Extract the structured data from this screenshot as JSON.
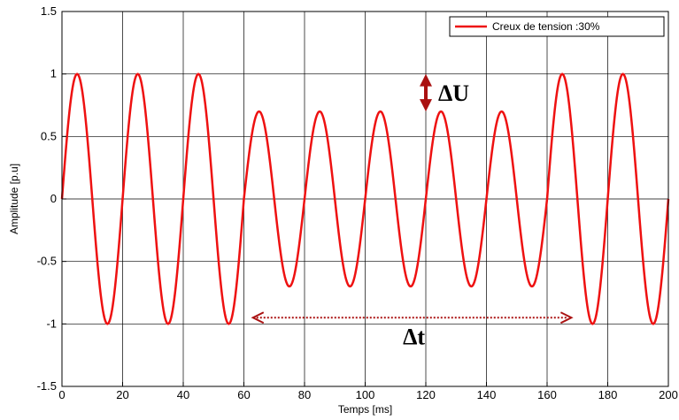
{
  "chart_data": {
    "type": "line",
    "xlabel": "Temps [ms]",
    "ylabel": "Amplitude [p.u]",
    "xlim": [
      0,
      200
    ],
    "ylim": [
      -1.5,
      1.5
    ],
    "xticks": [
      0,
      20,
      40,
      60,
      80,
      100,
      120,
      140,
      160,
      180,
      200
    ],
    "yticks": [
      -1.5,
      -1,
      -0.5,
      0,
      0.5,
      1,
      1.5
    ],
    "ytick_labels": [
      "-1.5",
      "-1",
      "-0.5",
      "0",
      "0.5",
      "1",
      "1.5"
    ],
    "grid": true,
    "legend": "top-right",
    "series": [
      {
        "name": "Creux de tension :30%",
        "color": "#ee1111",
        "frequency_hz": 50,
        "amplitude_normal": 1.0,
        "amplitude_sag": 0.7,
        "sag_start_ms": 60,
        "sag_end_ms": 160
      }
    ],
    "annotations": [
      {
        "text": "ΔU",
        "kind": "vertical-arrow",
        "x": 120,
        "y_from": 0.7,
        "y_to": 1.0,
        "color": "#aa1111"
      },
      {
        "text": "Δt",
        "kind": "horizontal-arrow",
        "y": -0.95,
        "x_from": 63,
        "x_to": 168,
        "color": "#aa1111"
      }
    ]
  }
}
